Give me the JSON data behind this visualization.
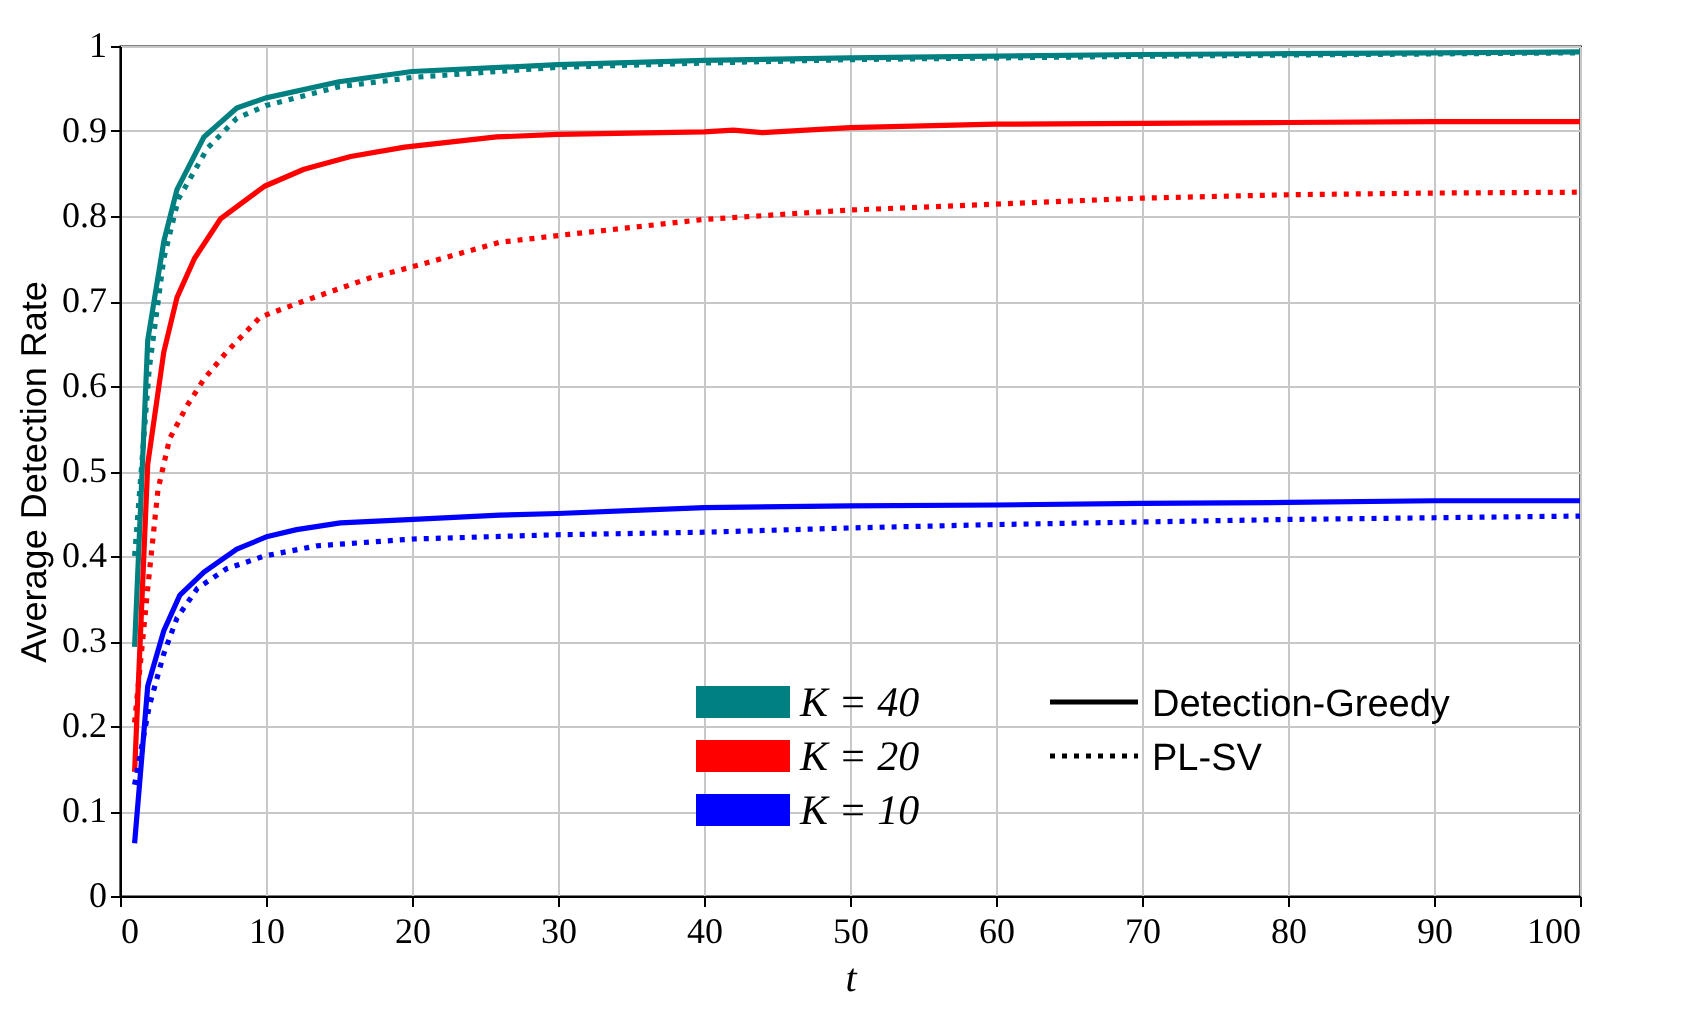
{
  "chart_data": {
    "type": "line",
    "xlabel": "t",
    "ylabel": "Average Detection Rate",
    "xlim": [
      0,
      100
    ],
    "ylim": [
      0,
      1
    ],
    "xticks": [
      0,
      10,
      20,
      30,
      40,
      50,
      60,
      70,
      80,
      90,
      100
    ],
    "yticks": [
      0,
      0.1,
      0.2,
      0.3,
      0.4,
      0.5,
      0.6,
      0.7,
      0.8,
      0.9,
      1
    ],
    "grid": true,
    "legend": "bottom right",
    "marker": "none",
    "annotations": [
      "Detection-Greedy",
      "PL-SV"
    ],
    "series": [
      {
        "name": "K = 40",
        "color": "#008080",
        "line_style": "solid",
        "x": [
          1,
          1.9,
          3,
          3.9,
          5.75,
          8,
          10,
          15,
          20,
          30,
          40,
          50,
          60,
          70,
          80,
          90,
          100
        ],
        "values": [
          0.293,
          0.654,
          0.77,
          0.831,
          0.893,
          0.927,
          0.939,
          0.958,
          0.97,
          0.978,
          0.983,
          0.986,
          0.988,
          0.99,
          0.991,
          0.992,
          0.993
        ]
      },
      {
        "color": "#008080",
        "line_style": "dotted",
        "x": [
          1,
          2,
          3,
          4,
          6,
          8,
          10,
          15,
          20,
          30,
          40,
          50,
          70,
          100
        ],
        "values": [
          0.4,
          0.62,
          0.75,
          0.82,
          0.88,
          0.915,
          0.93,
          0.952,
          0.963,
          0.975,
          0.98,
          0.984,
          0.988,
          0.992
        ]
      },
      {
        "name": "K = 20",
        "color": "#ff0000",
        "line_style": "solid",
        "x": [
          1,
          1.9,
          3,
          3.9,
          5.1,
          6.9,
          9.9,
          12.6,
          15.8,
          19.5,
          25.8,
          30,
          40,
          42,
          44,
          50,
          60,
          70,
          80,
          90,
          100
        ],
        "values": [
          0.146,
          0.508,
          0.64,
          0.704,
          0.75,
          0.797,
          0.835,
          0.855,
          0.87,
          0.881,
          0.893,
          0.896,
          0.899,
          0.901,
          0.898,
          0.904,
          0.908,
          0.909,
          0.91,
          0.911,
          0.911
        ]
      },
      {
        "color": "#ff0000",
        "line_style": "dotted",
        "x": [
          1,
          1.9,
          2.6,
          3.4,
          4.6,
          5.75,
          7.3,
          9.6,
          12.6,
          17.1,
          20.4,
          26,
          30,
          40,
          50,
          60,
          70,
          80,
          90,
          100
        ],
        "values": [
          0.204,
          0.362,
          0.478,
          0.538,
          0.577,
          0.608,
          0.64,
          0.681,
          0.7,
          0.727,
          0.742,
          0.769,
          0.777,
          0.796,
          0.807,
          0.814,
          0.821,
          0.825,
          0.827,
          0.828
        ]
      },
      {
        "name": "K = 10",
        "color": "#0000ff",
        "line_style": "solid",
        "x": [
          1,
          1.9,
          3,
          4.1,
          5.75,
          8,
          10.1,
          12.1,
          15.1,
          20.1,
          26,
          30,
          40,
          50,
          60,
          70,
          80,
          90,
          100
        ],
        "values": [
          0.062,
          0.247,
          0.312,
          0.354,
          0.381,
          0.408,
          0.423,
          0.431,
          0.439,
          0.443,
          0.448,
          0.45,
          0.457,
          0.459,
          0.46,
          0.462,
          0.463,
          0.465,
          0.465
        ]
      },
      {
        "color": "#0000ff",
        "line_style": "dotted",
        "x": [
          1,
          2,
          3,
          3.9,
          5.3,
          7.3,
          9.9,
          13.5,
          20.1,
          26,
          30,
          40,
          50,
          60,
          70,
          80,
          90,
          100
        ],
        "values": [
          0.131,
          0.223,
          0.285,
          0.327,
          0.362,
          0.385,
          0.4,
          0.412,
          0.42,
          0.423,
          0.425,
          0.428,
          0.433,
          0.437,
          0.44,
          0.443,
          0.445,
          0.447
        ]
      }
    ]
  }
}
